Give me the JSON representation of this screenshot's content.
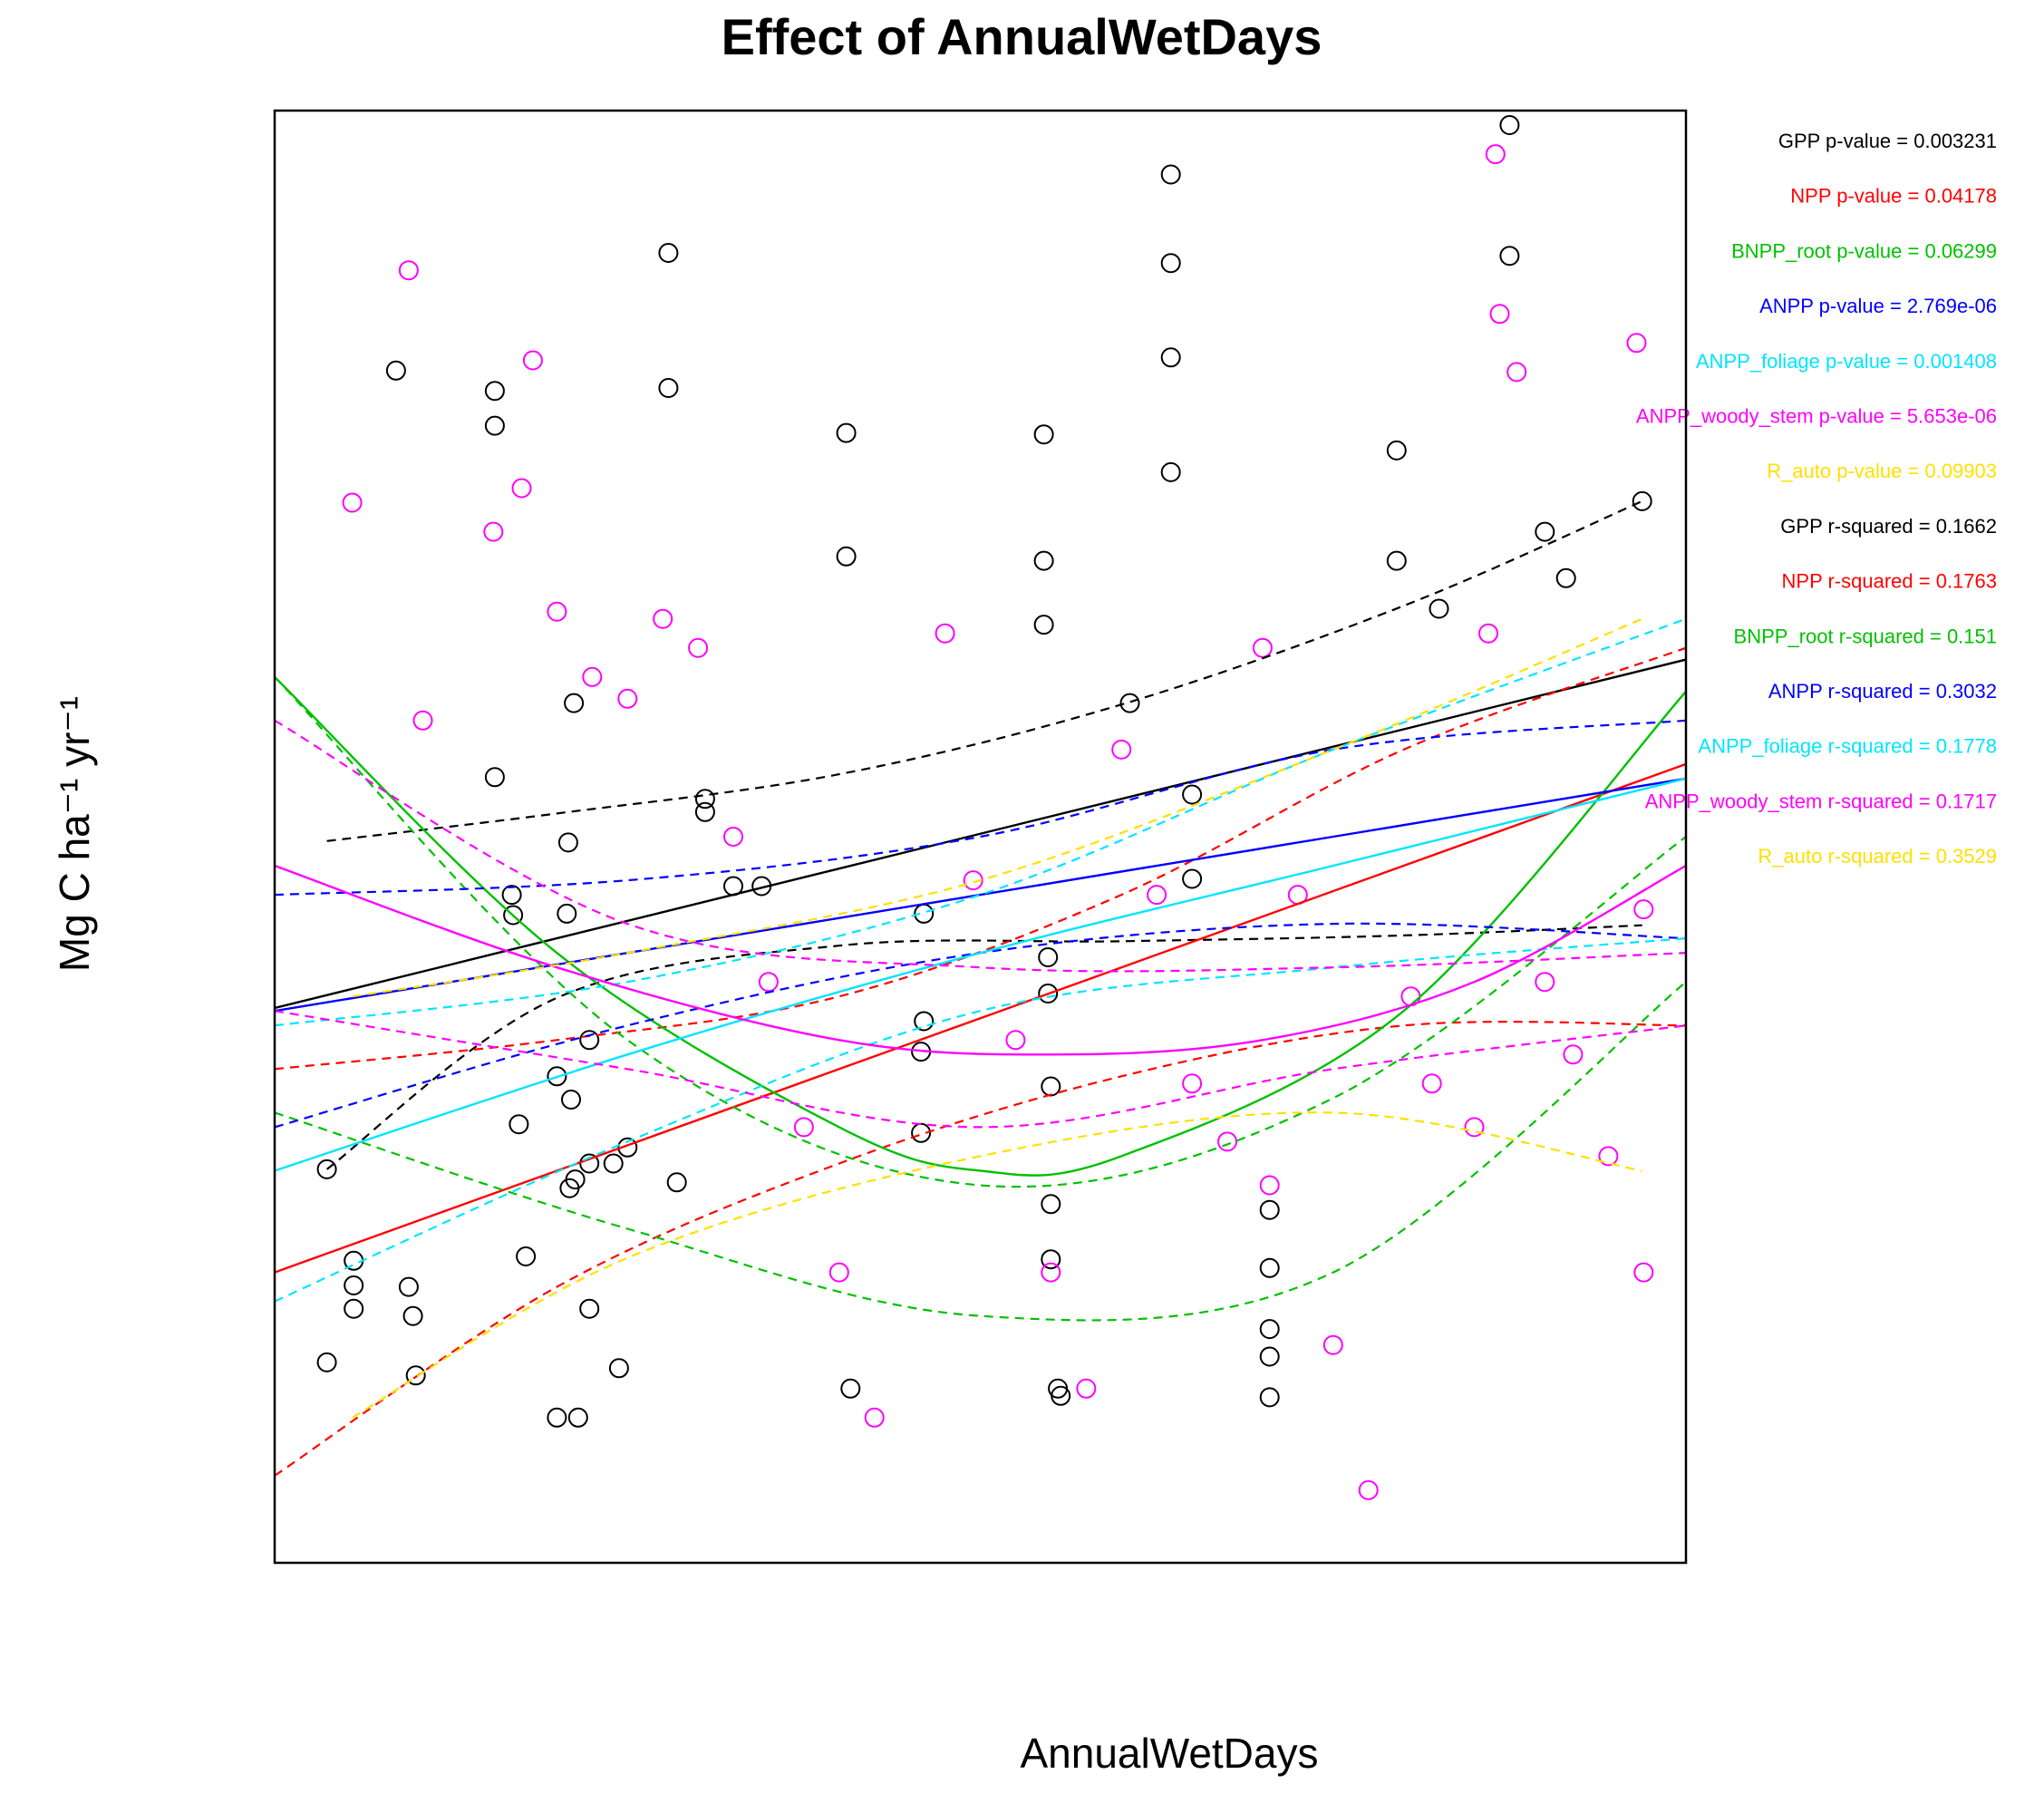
{
  "chart_data": {
    "type": "scatter",
    "title": "Effect of AnnualWetDays",
    "xlabel": "AnnualWetDays",
    "ylabel": "Mg C ha⁻¹ yr⁻¹",
    "xlim": [
      0,
      100
    ],
    "ylim": [
      0,
      100
    ],
    "tick_labels_shown": false,
    "series": [
      {
        "name": "GPP",
        "color": "#000000",
        "p_value_label": "GPP p-value = ",
        "p_value": "0.003231",
        "r_squared_label": "GPP r-squared = ",
        "r_squared": "0.1662",
        "fit": [
          [
            0,
            38.2
          ],
          [
            20,
            43.0
          ],
          [
            40,
            47.8
          ],
          [
            60,
            52.6
          ],
          [
            80,
            57.4
          ],
          [
            100,
            62.2
          ]
        ],
        "ci_upper": [
          [
            3.7,
            49.7
          ],
          [
            20,
            51.6
          ],
          [
            40,
            54.3
          ],
          [
            60,
            59.1
          ],
          [
            80,
            65.9
          ],
          [
            96.9,
            73.1
          ]
        ],
        "ci_lower": [
          [
            3.7,
            27.1
          ],
          [
            20,
            38.9
          ],
          [
            40,
            42.5
          ],
          [
            60,
            42.8
          ],
          [
            80,
            43.2
          ],
          [
            96.9,
            43.9
          ]
        ],
        "points": [
          [
            3.7,
            13.8
          ],
          [
            3.7,
            27.1
          ],
          [
            5.6,
            17.5
          ],
          [
            5.6,
            19.1
          ],
          [
            5.6,
            20.8
          ],
          [
            8.6,
            82.1
          ],
          [
            9.5,
            19.0
          ],
          [
            9.8,
            17.0
          ],
          [
            10.0,
            12.9
          ],
          [
            15.6,
            80.7
          ],
          [
            15.6,
            78.3
          ],
          [
            15.6,
            54.1
          ],
          [
            16.8,
            46.0
          ],
          [
            16.9,
            44.6
          ],
          [
            17.3,
            30.2
          ],
          [
            17.8,
            21.1
          ],
          [
            20.0,
            33.5
          ],
          [
            20.0,
            10.0
          ],
          [
            20.7,
            44.7
          ],
          [
            20.8,
            49.6
          ],
          [
            20.9,
            25.8
          ],
          [
            21.0,
            31.9
          ],
          [
            21.2,
            59.2
          ],
          [
            21.3,
            26.4
          ],
          [
            21.5,
            10.0
          ],
          [
            22.3,
            36.0
          ],
          [
            22.3,
            27.5
          ],
          [
            22.3,
            17.5
          ],
          [
            24.0,
            27.5
          ],
          [
            24.4,
            13.4
          ],
          [
            25.0,
            28.6
          ],
          [
            27.9,
            90.2
          ],
          [
            27.9,
            80.9
          ],
          [
            28.5,
            26.2
          ],
          [
            30.5,
            52.6
          ],
          [
            30.5,
            51.7
          ],
          [
            32.5,
            46.6
          ],
          [
            34.5,
            46.6
          ],
          [
            40.5,
            77.8
          ],
          [
            40.5,
            69.3
          ],
          [
            40.8,
            12.0
          ],
          [
            45.8,
            35.2
          ],
          [
            45.8,
            29.6
          ],
          [
            46.0,
            44.7
          ],
          [
            46.0,
            37.3
          ],
          [
            54.5,
            77.7
          ],
          [
            54.5,
            69.0
          ],
          [
            54.5,
            64.6
          ],
          [
            54.8,
            41.7
          ],
          [
            54.8,
            39.2
          ],
          [
            55.0,
            32.8
          ],
          [
            55.0,
            24.7
          ],
          [
            55.0,
            20.9
          ],
          [
            55.5,
            12.0
          ],
          [
            55.7,
            11.5
          ],
          [
            60.6,
            59.2
          ],
          [
            63.5,
            95.6
          ],
          [
            63.5,
            89.5
          ],
          [
            63.5,
            83.0
          ],
          [
            63.5,
            75.1
          ],
          [
            65.0,
            52.9
          ],
          [
            65.0,
            47.1
          ],
          [
            70.5,
            24.3
          ],
          [
            70.5,
            20.3
          ],
          [
            70.5,
            16.1
          ],
          [
            70.5,
            14.2
          ],
          [
            70.5,
            11.4
          ],
          [
            79.5,
            76.6
          ],
          [
            79.5,
            69.0
          ],
          [
            82.5,
            65.7
          ],
          [
            87.5,
            99.0
          ],
          [
            87.5,
            90.0
          ],
          [
            90.0,
            71.0
          ],
          [
            91.5,
            67.8
          ],
          [
            96.9,
            73.1
          ]
        ]
      },
      {
        "name": "NPP",
        "color": "#ff0000",
        "p_value_label": "NPP p-value = ",
        "p_value": "0.04178",
        "r_squared_label": "NPP r-squared = ",
        "r_squared": "0.1763",
        "fit": [
          [
            0,
            20.0
          ],
          [
            20,
            27.0
          ],
          [
            40,
            34.0
          ],
          [
            60,
            41.0
          ],
          [
            80,
            48.0
          ],
          [
            100,
            55.0
          ]
        ],
        "ci_upper": [
          [
            0,
            34.0
          ],
          [
            20,
            36.0
          ],
          [
            40,
            39.0
          ],
          [
            60,
            46.0
          ],
          [
            80,
            56.0
          ],
          [
            100,
            63.0
          ]
        ],
        "ci_lower": [
          [
            0,
            6.0
          ],
          [
            20,
            19.0
          ],
          [
            40,
            27.5
          ],
          [
            60,
            33.5
          ],
          [
            80,
            37.0
          ],
          [
            100,
            37.0
          ]
        ]
      },
      {
        "name": "BNPP_root",
        "color": "#00c000",
        "p_value_label": "BNPP_root p-value = ",
        "p_value": "0.06299",
        "r_squared_label": "BNPP_root r-squared = ",
        "r_squared": "0.151",
        "fit": [
          [
            0,
            61.0
          ],
          [
            20,
            42.0
          ],
          [
            40,
            30.0
          ],
          [
            50,
            27.0
          ],
          [
            60,
            28.0
          ],
          [
            80,
            38.0
          ],
          [
            100,
            60.0
          ]
        ],
        "ci_upper": [
          [
            0,
            61.0
          ],
          [
            25,
            36.0
          ],
          [
            50,
            26.0
          ],
          [
            75,
            32.0
          ],
          [
            100,
            50.0
          ]
        ],
        "ci_lower": [
          [
            0,
            31.0
          ],
          [
            25,
            23.0
          ],
          [
            50,
            17.0
          ],
          [
            75,
            20.0
          ],
          [
            100,
            40.0
          ]
        ]
      },
      {
        "name": "ANPP",
        "color": "#0000ff",
        "p_value_label": "ANPP p-value = ",
        "p_value": "2.769e-06",
        "r_squared_label": "ANPP r-squared = ",
        "r_squared": "0.3032",
        "fit": [
          [
            0,
            38.0
          ],
          [
            25,
            42.0
          ],
          [
            50,
            46.0
          ],
          [
            75,
            50.0
          ],
          [
            100,
            54.0
          ]
        ],
        "ci_upper": [
          [
            0,
            46.0
          ],
          [
            25,
            47.0
          ],
          [
            50,
            50.0
          ],
          [
            75,
            56.0
          ],
          [
            100,
            58.0
          ]
        ],
        "ci_lower": [
          [
            0,
            30.0
          ],
          [
            25,
            37.0
          ],
          [
            50,
            42.0
          ],
          [
            75,
            44.0
          ],
          [
            100,
            43.0
          ]
        ]
      },
      {
        "name": "ANPP_foliage",
        "color": "#00e5ff",
        "p_value_label": "ANPP_foliage p-value = ",
        "p_value": "0.001408",
        "r_squared_label": "ANPP_foliage r-squared = ",
        "r_squared": "0.1778",
        "fit": [
          [
            0,
            27.0
          ],
          [
            25,
            35.0
          ],
          [
            50,
            42.0
          ],
          [
            75,
            48.0
          ],
          [
            100,
            54.0
          ]
        ],
        "ci_upper": [
          [
            0,
            37.0
          ],
          [
            25,
            40.0
          ],
          [
            50,
            46.0
          ],
          [
            75,
            56.0
          ],
          [
            100,
            65.0
          ]
        ],
        "ci_lower": [
          [
            0,
            18.0
          ],
          [
            25,
            29.0
          ],
          [
            50,
            38.0
          ],
          [
            75,
            41.0
          ],
          [
            100,
            43.0
          ]
        ]
      },
      {
        "name": "ANPP_woody_stem",
        "color": "#ff00ff",
        "p_value_label": "ANPP_woody_stem p-value = ",
        "p_value": "5.653e-06",
        "r_squared_label": "ANPP_woody_stem r-squared = ",
        "r_squared": "0.1717",
        "fit": [
          [
            0,
            48.0
          ],
          [
            20,
            41.0
          ],
          [
            40,
            36.0
          ],
          [
            55,
            35.0
          ],
          [
            70,
            36.0
          ],
          [
            85,
            40.0
          ],
          [
            100,
            48.0
          ]
        ],
        "ci_upper": [
          [
            0,
            58.0
          ],
          [
            25,
            44.0
          ],
          [
            50,
            41.0
          ],
          [
            75,
            41.0
          ],
          [
            100,
            42.0
          ]
        ],
        "ci_lower": [
          [
            0,
            38.0
          ],
          [
            25,
            34.0
          ],
          [
            50,
            30.0
          ],
          [
            75,
            34.0
          ],
          [
            100,
            37.0
          ]
        ],
        "points": [
          [
            5.5,
            73.0
          ],
          [
            9.5,
            89.0
          ],
          [
            10.5,
            58.0
          ],
          [
            15.5,
            71.0
          ],
          [
            18.3,
            82.8
          ],
          [
            17.5,
            74.0
          ],
          [
            20.0,
            65.5
          ],
          [
            22.5,
            61.0
          ],
          [
            25.0,
            59.5
          ],
          [
            27.5,
            65.0
          ],
          [
            30.0,
            63.0
          ],
          [
            32.5,
            50.0
          ],
          [
            35.0,
            40.0
          ],
          [
            37.5,
            30.0
          ],
          [
            40.0,
            20.0
          ],
          [
            42.5,
            10.0
          ],
          [
            47.5,
            64.0
          ],
          [
            49.5,
            47.0
          ],
          [
            52.5,
            36.0
          ],
          [
            55.0,
            20.0
          ],
          [
            57.5,
            12.0
          ],
          [
            60.0,
            56.0
          ],
          [
            62.5,
            46.0
          ],
          [
            65.0,
            33.0
          ],
          [
            67.5,
            29.0
          ],
          [
            70.0,
            63.0
          ],
          [
            70.5,
            26.0
          ],
          [
            72.5,
            46.0
          ],
          [
            75.0,
            15.0
          ],
          [
            77.5,
            5.0
          ],
          [
            80.5,
            39.0
          ],
          [
            82.0,
            33.0
          ],
          [
            85.0,
            30.0
          ],
          [
            86.0,
            64.0
          ],
          [
            86.5,
            97.0
          ],
          [
            86.8,
            86.0
          ],
          [
            88.0,
            82.0
          ],
          [
            90.0,
            40.0
          ],
          [
            92.0,
            35.0
          ],
          [
            94.5,
            28.0
          ],
          [
            96.5,
            84.0
          ],
          [
            97.0,
            45.0
          ],
          [
            97.0,
            20.0
          ]
        ]
      },
      {
        "name": "R_auto",
        "color": "#ffe000",
        "p_value_label": "R_auto p-value = ",
        "p_value": "0.09903",
        "r_squared_label": "R_auto r-squared = ",
        "r_squared": "0.3529",
        "fit": [],
        "ci_upper": [
          [
            5.5,
            39.0
          ],
          [
            25,
            42.0
          ],
          [
            50,
            47.0
          ],
          [
            75,
            56.0
          ],
          [
            96.9,
            65.0
          ]
        ],
        "ci_lower": [
          [
            5.5,
            10.0
          ],
          [
            25,
            21.0
          ],
          [
            50,
            28.0
          ],
          [
            75,
            31.0
          ],
          [
            96.9,
            27.0
          ]
        ]
      }
    ],
    "stats_text": [
      {
        "text": "GPP p-value =  0.003231",
        "color": "#000000"
      },
      {
        "text": "NPP p-value =  0.04178",
        "color": "#ff0000"
      },
      {
        "text": "BNPP_root p-value =  0.06299",
        "color": "#00c000"
      },
      {
        "text": "ANPP p-value =  2.769e-06",
        "color": "#0000ff"
      },
      {
        "text": "ANPP_foliage p-value =  0.001408",
        "color": "#00e5ff"
      },
      {
        "text": "ANPP_woody_stem p-value =  5.653e-06",
        "color": "#ff00ff"
      },
      {
        "text": "R_auto p-value =  0.09903",
        "color": "#ffe000"
      },
      {
        "text": "GPP r-squared =  0.1662",
        "color": "#000000"
      },
      {
        "text": "NPP r-squared =  0.1763",
        "color": "#ff0000"
      },
      {
        "text": "BNPP_root r-squared =  0.151",
        "color": "#00c000"
      },
      {
        "text": "ANPP r-squared =  0.3032",
        "color": "#0000ff"
      },
      {
        "text": "ANPP_foliage r-squared =  0.1778",
        "color": "#00e5ff"
      },
      {
        "text": "ANPP_woody_stem r-squared =  0.1717",
        "color": "#ff00ff"
      },
      {
        "text": "R_auto r-squared =  0.3529",
        "color": "#ffe000"
      }
    ]
  }
}
